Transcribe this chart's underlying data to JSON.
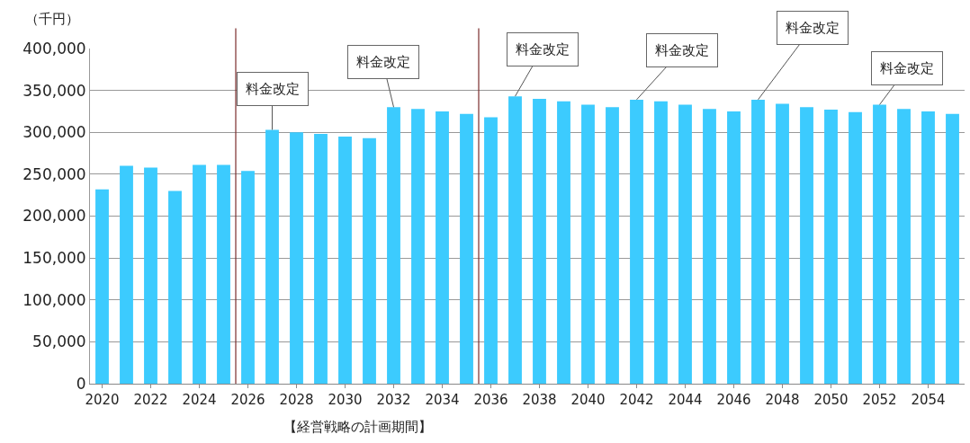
{
  "chart_data": {
    "type": "bar",
    "ylabel": "（千円）",
    "x": [
      2020,
      2021,
      2022,
      2023,
      2024,
      2025,
      2026,
      2027,
      2028,
      2029,
      2030,
      2031,
      2032,
      2033,
      2034,
      2035,
      2036,
      2037,
      2038,
      2039,
      2040,
      2041,
      2042,
      2043,
      2044,
      2045,
      2046,
      2047,
      2048,
      2049,
      2050,
      2051,
      2052,
      2053,
      2054,
      2055
    ],
    "values": [
      232000,
      260000,
      258000,
      230000,
      261000,
      261000,
      254000,
      303000,
      300000,
      298000,
      295000,
      293000,
      330000,
      328000,
      325000,
      322000,
      318000,
      343000,
      340000,
      337000,
      333000,
      330000,
      339000,
      337000,
      333000,
      328000,
      325000,
      339000,
      334000,
      330000,
      327000,
      324000,
      333000,
      328000,
      325000,
      322000
    ],
    "color": "#3ccbfe",
    "xlim": [
      2019.5,
      2055.5
    ],
    "xticks": [
      2020,
      2022,
      2024,
      2026,
      2028,
      2030,
      2032,
      2034,
      2036,
      2038,
      2040,
      2042,
      2044,
      2046,
      2048,
      2050,
      2052,
      2054
    ],
    "ylim": [
      0,
      400000
    ],
    "yticks": [
      {
        "value": 0,
        "label": "0"
      },
      {
        "value": 50000,
        "label": "50,000"
      },
      {
        "value": 100000,
        "label": "100,000"
      },
      {
        "value": 150000,
        "label": "150,000"
      },
      {
        "value": 200000,
        "label": "200,000"
      },
      {
        "value": 250000,
        "label": "250,000"
      },
      {
        "value": 300000,
        "label": "300,000"
      },
      {
        "value": 350000,
        "label": "350,000"
      },
      {
        "value": 400000,
        "label": "400,000"
      }
    ],
    "grid": "y",
    "ref_lines": [
      {
        "axis": "x",
        "value": 2025.5,
        "color": "#7b2c2c"
      },
      {
        "axis": "x",
        "value": 2035.5,
        "color": "#7b2c2c"
      }
    ],
    "annotations": [
      {
        "text": "料金改定",
        "x": 2027,
        "y": 303000
      },
      {
        "text": "料金改定",
        "x": 2032,
        "y": 330000
      },
      {
        "text": "料金改定",
        "x": 2037,
        "y": 343000
      },
      {
        "text": "料金改定",
        "x": 2042,
        "y": 339000
      },
      {
        "text": "料金改定",
        "x": 2047,
        "y": 339000
      },
      {
        "text": "料金改定",
        "x": 2052,
        "y": 333000
      },
      "【経営戦略の計画期間】"
    ]
  }
}
